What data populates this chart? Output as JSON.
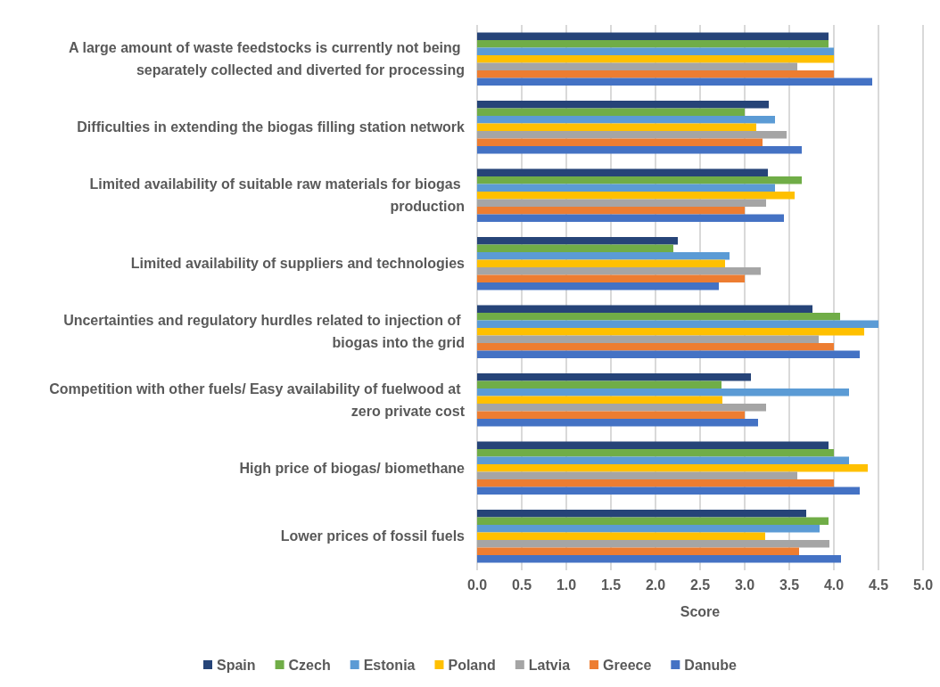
{
  "chart_data": {
    "type": "bar",
    "orientation": "horizontal",
    "xlabel": "Score",
    "categories": [
      "A large amount of waste feedstocks is currently not being separately collected and diverted for processing",
      "Difficulties in extending the biogas filling station network",
      "Limited availability of suitable raw materials for biogas production",
      "Limited availability of suppliers and technologies",
      "Uncertainties and regulatory hurdles related to injection of biogas into the grid",
      "Competition with other fuels/ Easy availability of fuelwood at zero private cost",
      "High price of biogas/ biomethane",
      "Lower prices of fossil fuels"
    ],
    "series": [
      {
        "name": "Spain",
        "color": "#264478",
        "values": [
          3.94,
          3.27,
          3.26,
          2.25,
          3.76,
          3.07,
          3.94,
          3.69
        ]
      },
      {
        "name": "Czech",
        "color": "#70ad47",
        "values": [
          3.94,
          3.0,
          3.64,
          2.2,
          4.07,
          2.74,
          4.0,
          3.94
        ]
      },
      {
        "name": "Estonia",
        "color": "#5b9bd5",
        "values": [
          4.0,
          3.34,
          3.34,
          2.83,
          4.5,
          4.17,
          4.17,
          3.84
        ]
      },
      {
        "name": "Poland",
        "color": "#ffc000",
        "values": [
          4.0,
          3.13,
          3.56,
          2.78,
          4.34,
          2.75,
          4.38,
          3.23
        ]
      },
      {
        "name": "Latvia",
        "color": "#a5a5a5",
        "values": [
          3.59,
          3.47,
          3.24,
          3.18,
          3.83,
          3.24,
          3.59,
          3.95
        ]
      },
      {
        "name": "Greece",
        "color": "#ed7d31",
        "values": [
          4.0,
          3.2,
          3.0,
          3.0,
          4.0,
          3.0,
          4.0,
          3.61
        ]
      },
      {
        "name": "Danube",
        "color": "#4472c4",
        "values": [
          4.43,
          3.64,
          3.44,
          2.71,
          4.29,
          3.15,
          4.29,
          4.08
        ]
      }
    ],
    "xlim": [
      0,
      5
    ],
    "xticks": [
      {
        "value": 0,
        "label": "0.0"
      },
      {
        "value": 0.5,
        "label": "0.5"
      },
      {
        "value": 1,
        "label": "1.0"
      },
      {
        "value": 1.5,
        "label": "1.5"
      },
      {
        "value": 2,
        "label": "2.0"
      },
      {
        "value": 2.5,
        "label": "2.5"
      },
      {
        "value": 3,
        "label": "3.0"
      },
      {
        "value": 3.5,
        "label": "3.5"
      },
      {
        "value": 4,
        "label": "4.0"
      },
      {
        "value": 4.5,
        "label": "4.5"
      },
      {
        "value": 5,
        "label": "5.0"
      }
    ],
    "grid": "x",
    "legend": "bottom"
  }
}
